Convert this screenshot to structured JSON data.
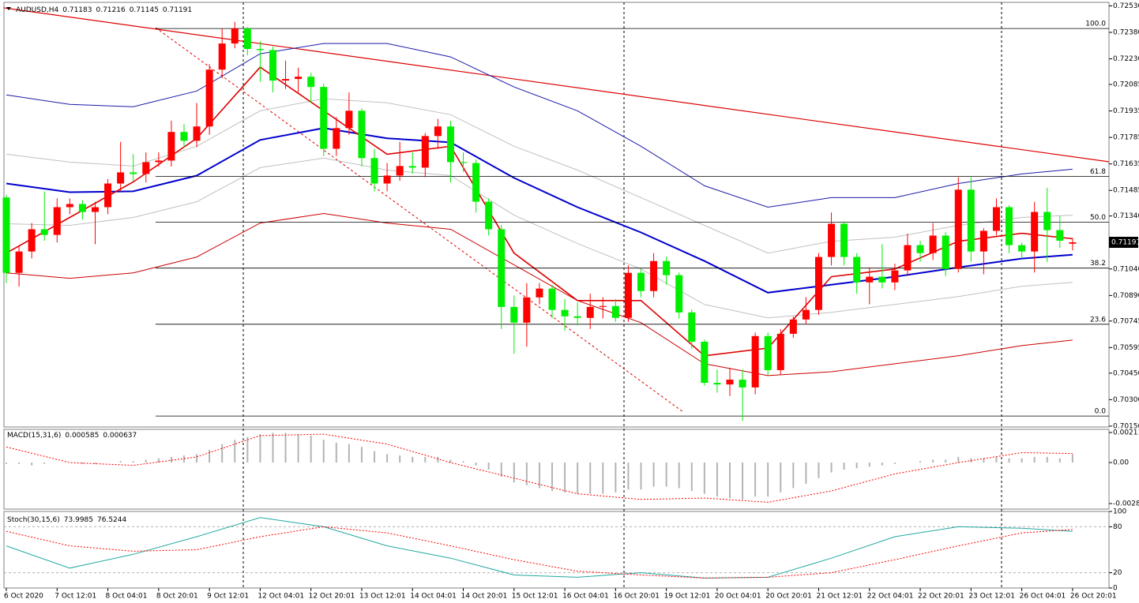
{
  "chart_data": [
    {
      "type": "candlestick",
      "title": "AUDUSD,H4",
      "categories": [
        "6 Oct 2020",
        null,
        null,
        null,
        "7 Oct 12:01",
        null,
        null,
        null,
        "8 Oct 04:01",
        null,
        null,
        null,
        "8 Oct 20:01",
        null,
        null,
        null,
        "9 Oct 12:01",
        null,
        null,
        null,
        "12 Oct 04:01",
        null,
        null,
        null,
        "12 Oct 20:01",
        null,
        null,
        null,
        "13 Oct 12:01",
        null,
        null,
        null,
        "14 Oct 04:01",
        null,
        null,
        null,
        "14 Oct 20:01",
        null,
        null,
        null,
        "15 Oct 12:01",
        null,
        null,
        null,
        "16 Oct 04:01",
        null,
        null,
        null,
        "16 Oct 20:01",
        null,
        null,
        null,
        "19 Oct 12:01",
        null,
        null,
        null,
        "20 Oct 04:01",
        null,
        null,
        null,
        "20 Oct 20:01",
        null,
        null,
        null,
        "21 Oct 12:01",
        null,
        null,
        null,
        "22 Oct 04:01",
        null,
        null,
        null,
        "22 Oct 20:01",
        null,
        null,
        null,
        "23 Oct 12:01",
        null,
        null,
        null,
        "26 Oct 04:01",
        null,
        null,
        null,
        "26 Oct 20:01"
      ],
      "open": [
        0.71445,
        0.71018,
        0.71139,
        0.71265,
        0.71233,
        0.7139,
        0.71408,
        0.71363,
        0.7139,
        0.71524,
        0.71587,
        0.71578,
        0.71645,
        0.71654,
        0.71816,
        0.71766,
        0.71847,
        0.72169,
        0.72317,
        0.72402,
        0.72286,
        0.7228,
        0.72107,
        0.72116,
        0.72129,
        0.72071,
        0.71721,
        0.71838,
        0.71936,
        0.71668,
        0.71524,
        0.71569,
        0.71623,
        0.71614,
        0.71793,
        0.71847,
        0.71645,
        0.7164,
        0.71421,
        0.71265,
        0.70825,
        0.70736,
        0.70879,
        0.70929,
        0.70808,
        0.70772,
        0.70763,
        0.70825,
        0.7083,
        0.70763,
        0.71018,
        0.70915,
        0.71085,
        0.71005,
        0.70794,
        0.70628,
        0.70395,
        0.70386,
        0.70413,
        0.70369,
        0.7066,
        0.70467,
        0.70673,
        0.70754,
        0.70808,
        0.71108,
        0.71296,
        0.71108,
        0.70964,
        0.70996,
        0.70964,
        0.71032,
        0.71175,
        0.7113,
        0.71229,
        0.7104,
        0.71489,
        0.71139,
        0.71256,
        0.7139,
        0.71175,
        0.71139,
        0.71363,
        0.7126,
        0.71183
      ],
      "high": [
        0.7146,
        0.7117,
        0.713,
        0.7148,
        0.7144,
        0.7144,
        0.7143,
        0.7142,
        0.7155,
        0.7176,
        0.7169,
        0.717,
        0.717,
        0.7188,
        0.7186,
        0.7198,
        0.722,
        0.724,
        0.7244,
        0.7241,
        0.7233,
        0.723,
        0.7222,
        0.7218,
        0.7215,
        0.7209,
        0.719,
        0.7204,
        0.7195,
        0.7172,
        0.7164,
        0.7176,
        0.717,
        0.7181,
        0.7189,
        0.7188,
        0.717,
        0.7166,
        0.7144,
        0.7129,
        0.7089,
        0.7096,
        0.7096,
        0.7095,
        0.7087,
        0.7085,
        0.709,
        0.7088,
        0.7087,
        0.7106,
        0.7104,
        0.7113,
        0.7111,
        0.7102,
        0.7081,
        0.7064,
        0.7047,
        0.7048,
        0.7047,
        0.7068,
        0.7068,
        0.707,
        0.7077,
        0.7088,
        0.7113,
        0.7136,
        0.7131,
        0.7113,
        0.7105,
        0.7118,
        0.7107,
        0.7124,
        0.712,
        0.713,
        0.7125,
        0.7156,
        0.7156,
        0.7127,
        0.7144,
        0.714,
        0.7119,
        0.7142,
        0.715,
        0.7134,
        0.71216
      ],
      "low": [
        0.7096,
        0.7094,
        0.711,
        0.712,
        0.7119,
        0.7135,
        0.7132,
        0.7118,
        0.7135,
        0.7148,
        0.7154,
        0.7153,
        0.7162,
        0.7162,
        0.7173,
        0.7173,
        0.718,
        0.7212,
        0.7229,
        0.7225,
        0.721,
        0.7204,
        0.7206,
        0.7204,
        0.7198,
        0.7168,
        0.7168,
        0.718,
        0.7162,
        0.7148,
        0.7148,
        0.7154,
        0.7158,
        0.7156,
        0.7172,
        0.7153,
        0.7159,
        0.7136,
        0.7123,
        0.707,
        0.7056,
        0.706,
        0.7084,
        0.7076,
        0.7069,
        0.7072,
        0.707,
        0.7076,
        0.7074,
        0.7074,
        0.7088,
        0.7088,
        0.7095,
        0.7076,
        0.7059,
        0.7038,
        0.7034,
        0.7032,
        0.7018,
        0.7033,
        0.7044,
        0.7044,
        0.7065,
        0.7073,
        0.7078,
        0.7106,
        0.7106,
        0.709,
        0.7084,
        0.7093,
        0.7092,
        0.71,
        0.7108,
        0.7109,
        0.71,
        0.7102,
        0.7108,
        0.7101,
        0.7123,
        0.7113,
        0.711,
        0.7102,
        0.7108,
        0.7116,
        0.71145
      ],
      "close": [
        0.71018,
        0.71139,
        0.71265,
        0.71233,
        0.7139,
        0.71408,
        0.71363,
        0.7139,
        0.71524,
        0.71587,
        0.71578,
        0.71645,
        0.71654,
        0.71816,
        0.71766,
        0.71847,
        0.72169,
        0.72317,
        0.72402,
        0.72286,
        0.7228,
        0.72107,
        0.72116,
        0.72129,
        0.72071,
        0.71721,
        0.71838,
        0.71936,
        0.71668,
        0.71524,
        0.71569,
        0.71623,
        0.71614,
        0.71793,
        0.71847,
        0.71645,
        0.7164,
        0.71421,
        0.71265,
        0.70825,
        0.70736,
        0.70879,
        0.70929,
        0.70808,
        0.70772,
        0.70763,
        0.70825,
        0.7083,
        0.70763,
        0.71018,
        0.70915,
        0.71085,
        0.71005,
        0.70794,
        0.70628,
        0.70395,
        0.70386,
        0.70413,
        0.70369,
        0.7066,
        0.70467,
        0.70673,
        0.70754,
        0.70808,
        0.71108,
        0.71296,
        0.71108,
        0.70964,
        0.70996,
        0.70964,
        0.71032,
        0.71175,
        0.7113,
        0.71229,
        0.7104,
        0.71489,
        0.71139,
        0.71256,
        0.7139,
        0.71175,
        0.71139,
        0.71363,
        0.7126,
        0.712,
        0.71191
      ],
      "up_color": "#ff0000",
      "down_color": "#00ee00",
      "ylim": [
        0.70145,
        0.7255
      ],
      "yticks": [
        {
          "value": 0.7253,
          "label": "0.72530"
        },
        {
          "value": 0.7238,
          "label": "0.72380"
        },
        {
          "value": 0.7223,
          "label": "0.72230"
        },
        0.72085,
        0.71935,
        0.71785,
        0.71635,
        0.71485,
        {
          "value": 0.7134,
          "label": "0.71340"
        },
        {
          "value": 0.7104,
          "label": "0.71040"
        },
        {
          "value": 0.7089,
          "label": "0.70890"
        },
        0.70745,
        0.70595,
        {
          "value": 0.7045,
          "label": "0.70450"
        },
        {
          "value": 0.703,
          "label": "0.70300"
        },
        {
          "value": 0.7015,
          "label": "0.70150"
        }
      ],
      "overlays": [
        {
          "color": "#c0c0c0",
          "width": 1,
          "x": [
            0,
            5,
            10,
            15,
            20,
            25,
            30,
            35,
            40,
            45,
            50,
            55,
            60,
            65,
            70,
            75,
            80,
            84
          ],
          "values": [
            0.7169,
            0.71645,
            0.71623,
            0.71735,
            0.71936,
            0.72004,
            0.71981,
            0.71914,
            0.71735,
            0.716,
            0.71444,
            0.71287,
            0.7113,
            0.71197,
            0.7122,
            0.71287,
            0.71332,
            0.71345
          ]
        },
        {
          "color": "#c0c0c0",
          "width": 1,
          "x": [
            0,
            5,
            10,
            15,
            20,
            25,
            30,
            35,
            40,
            45,
            50,
            55,
            60,
            65,
            70,
            75,
            80,
            84
          ],
          "values": [
            0.71296,
            0.71287,
            0.71332,
            0.71421,
            0.71614,
            0.71668,
            0.716,
            0.71569,
            0.71345,
            0.71184,
            0.7104,
            0.70839,
            0.70763,
            0.70794,
            0.70839,
            0.70884,
            0.70942,
            0.70964
          ]
        },
        {
          "color": "#1a1aa8",
          "width": 1,
          "x": [
            0,
            5,
            10,
            15,
            20,
            25,
            30,
            35,
            40,
            45,
            50,
            55,
            60,
            65,
            70,
            75,
            80,
            84
          ],
          "values": [
            0.72026,
            0.71972,
            0.71959,
            0.72048,
            0.72259,
            0.72317,
            0.72317,
            0.72241,
            0.72071,
            0.71936,
            0.71735,
            0.71511,
            0.7139,
            0.71444,
            0.71444,
            0.71524,
            0.71578,
            0.71605
          ]
        },
        {
          "color": "#cc0000",
          "width": 1,
          "x": [
            0,
            5,
            10,
            15,
            20,
            25,
            30,
            35,
            40,
            45,
            50,
            55,
            60,
            65,
            70,
            75,
            80,
            84
          ],
          "values": [
            0.71018,
            0.70987,
            0.71018,
            0.71108,
            0.713,
            0.71354,
            0.713,
            0.71265,
            0.71063,
            0.70861,
            0.70736,
            0.70503,
            0.70436,
            0.70458,
            0.70503,
            0.70548,
            0.70606,
            0.70637
          ]
        },
        {
          "color": "#0000cc",
          "width": 2,
          "x": [
            0,
            5,
            10,
            15,
            20,
            25,
            30,
            35,
            40,
            45,
            50,
            55,
            60,
            65,
            70,
            75,
            80,
            84
          ],
          "values": [
            0.71524,
            0.71475,
            0.7148,
            0.71569,
            0.71771,
            0.71838,
            0.7178,
            0.71757,
            0.71556,
            0.7139,
            0.71247,
            0.71085,
            0.70906,
            0.70951,
            0.70996,
            0.71049,
            0.71099,
            0.71121
          ]
        },
        {
          "color": "#dd0000",
          "width": 1.6,
          "x": [
            0,
            5,
            10,
            15,
            20,
            25,
            30,
            35,
            40,
            45,
            50,
            55,
            60,
            65,
            70,
            75,
            80,
            84
          ],
          "values": [
            0.7113,
            0.71332,
            0.71533,
            0.7178,
            0.72183,
            0.71936,
            0.7169,
            0.71735,
            0.7113,
            0.70861,
            0.70861,
            0.70548,
            0.70592,
            0.70996,
            0.7104,
            0.71197,
            0.71242,
            0.71211
          ]
        }
      ],
      "fibo": [
        {
          "label": "100.0",
          "value": 0.72402
        },
        {
          "label": "61.8",
          "value": 0.71565
        },
        {
          "label": "50.0",
          "value": 0.71305
        },
        {
          "label": "38.2",
          "value": 0.71045
        },
        {
          "label": "23.6",
          "value": 0.70727
        },
        {
          "label": "0.0",
          "value": 0.70207
        }
      ]
    },
    {
      "type": "macd",
      "title": "MACD(15,31,6)",
      "histogram": {
        "color": "#b4b4b4",
        "values": [
          -0.0001,
          -0.0001,
          -0.0002,
          -0.0001,
          0,
          0,
          -0.0001,
          -0.0001,
          0,
          0.0001,
          0.0001,
          0.0002,
          0.0003,
          0.0004,
          0.0005,
          0.0006,
          0.0009,
          0.0013,
          0.0016,
          0.0018,
          0.002,
          0.0021,
          0.0021,
          0.002,
          0.0019,
          0.0016,
          0.0014,
          0.0013,
          0.0011,
          0.0008,
          0.0006,
          0.0005,
          0.0004,
          0.0004,
          0.0004,
          0.0002,
          0.0001,
          -0.0002,
          -0.0005,
          -0.001,
          -0.0014,
          -0.0016,
          -0.0018,
          -0.002,
          -0.0021,
          -0.0022,
          -0.0022,
          -0.0022,
          -0.0021,
          -0.0019,
          -0.0019,
          -0.0017,
          -0.0017,
          -0.0018,
          -0.002,
          -0.0022,
          -0.0024,
          -0.0025,
          -0.0026,
          -0.0024,
          -0.0024,
          -0.0021,
          -0.0018,
          -0.0015,
          -0.0011,
          -0.0007,
          -0.0005,
          -0.0004,
          -0.0003,
          -0.0002,
          -0.0001,
          0,
          0.0001,
          0.0002,
          0.0002,
          0.0004,
          0.0003,
          0.0003,
          0.0004,
          0.0003,
          0.0003,
          0.0004,
          0.0004,
          0.0003,
          0.000585
        ]
      },
      "signal": {
        "color": "#ff0000",
        "x": [
          0,
          5,
          10,
          15,
          20,
          25,
          30,
          35,
          40,
          45,
          50,
          55,
          60,
          65,
          70,
          75,
          80,
          84
        ],
        "values": [
          0.0011,
          0,
          -0.0002,
          0.0004,
          0.0019,
          0.002,
          0.0013,
          0,
          -0.0011,
          -0.0022,
          -0.0026,
          -0.0025,
          -0.0028,
          -0.002,
          -0.0008,
          0,
          0.0007,
          0.000637
        ]
      },
      "ylim": [
        -0.00328,
        0.00234
      ],
      "yticks": [
        0.002119,
        {
          "value": 0,
          "label": "0.00"
        },
        -0.00289
      ]
    },
    {
      "type": "stochastic",
      "title": "Stoch(30,15,6)",
      "series": [
        {
          "color": "#20a8a0",
          "dashed": false,
          "x": [
            0,
            5,
            10,
            15,
            20,
            25,
            30,
            35,
            40,
            45,
            50,
            55,
            60,
            65,
            70,
            75,
            80,
            84
          ],
          "values": [
            55,
            26,
            44,
            67,
            92,
            80,
            55,
            39,
            17,
            14,
            20,
            13,
            14,
            39,
            67,
            80,
            78,
            73.9985
          ]
        },
        {
          "color": "#ff0000",
          "dashed": true,
          "x": [
            0,
            5,
            10,
            15,
            20,
            25,
            30,
            35,
            40,
            45,
            50,
            55,
            60,
            65,
            70,
            75,
            80,
            84
          ],
          "values": [
            74,
            55,
            48,
            50,
            67,
            80,
            72,
            55,
            37,
            22,
            17,
            13,
            14,
            20,
            37,
            55,
            72,
            76.5244
          ]
        }
      ],
      "ylim": [
        0,
        100
      ],
      "yticks": [
        100,
        80,
        20,
        0
      ],
      "levels": [
        80,
        20
      ]
    }
  ]
}
